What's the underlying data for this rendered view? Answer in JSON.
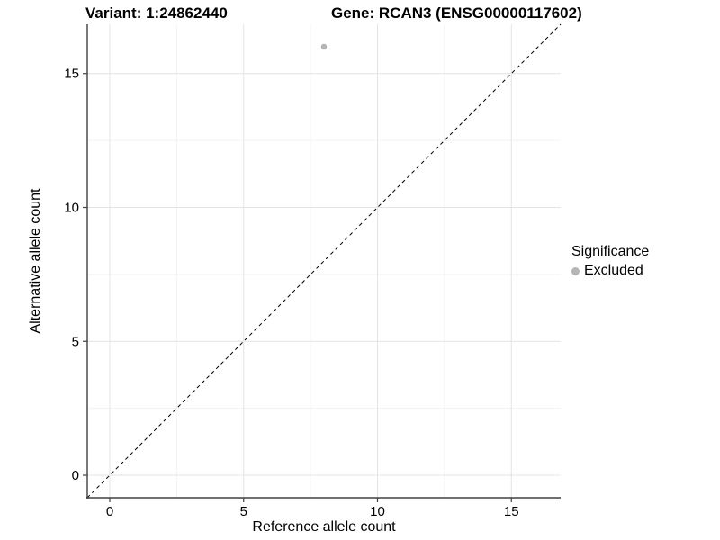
{
  "titles": {
    "variant": "Variant: 1:24862440",
    "gene": "Gene: RCAN3 (ENSG00000117602)"
  },
  "chart_data": {
    "type": "scatter",
    "title_left": "Variant: 1:24862440",
    "title_right": "Gene: RCAN3 (ENSG00000117602)",
    "xlabel": "Reference allele count",
    "ylabel": "Alternative allele count",
    "xlim": [
      -0.84,
      16.84
    ],
    "ylim": [
      -0.84,
      16.84
    ],
    "xticks": [
      0,
      5,
      10,
      15
    ],
    "yticks": [
      0,
      5,
      10,
      15
    ],
    "minor_ticks": [
      2.5,
      7.5,
      12.5
    ],
    "grid": true,
    "points": [
      {
        "x": 8,
        "y": 16,
        "series": "Excluded"
      }
    ],
    "reference_line": {
      "type": "identity",
      "style": "dashed",
      "color": "#000000"
    },
    "legend": {
      "title": "Significance",
      "position": "right",
      "entries": [
        {
          "label": "Excluded",
          "color": "#b5b5b5"
        }
      ]
    },
    "colors": {
      "point": "#b5b5b5",
      "axis_line": "#404040",
      "grid_major": "#e4e4e4",
      "grid_minor": "#f2f2f2",
      "tick_text": "#000000"
    }
  }
}
